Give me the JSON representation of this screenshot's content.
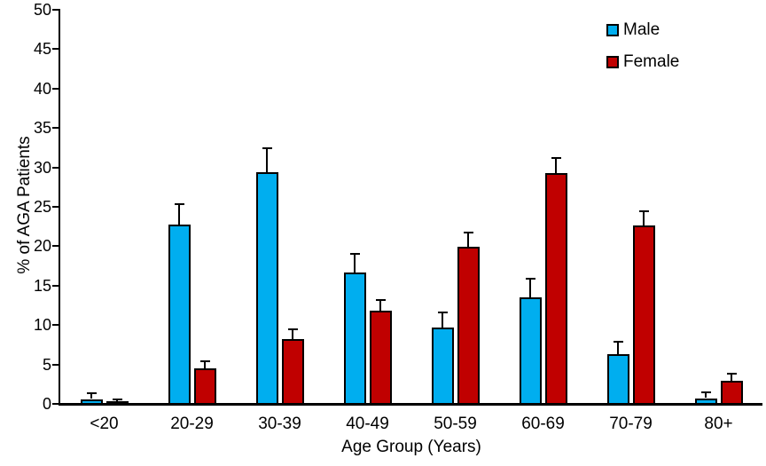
{
  "chart_data": {
    "type": "bar",
    "title": "",
    "xlabel": "Age Group (Years)",
    "ylabel": "% of AGA Patients",
    "categories": [
      "<20",
      "20-29",
      "30-39",
      "40-49",
      "50-59",
      "60-69",
      "70-79",
      "80+"
    ],
    "series": [
      {
        "name": "Male",
        "color": "#00AEEF",
        "values": [
          0.6,
          22.7,
          29.4,
          16.7,
          9.7,
          13.5,
          6.3,
          0.7
        ],
        "errors_upper": [
          0.6,
          2.5,
          2.9,
          2.2,
          1.8,
          2.3,
          1.5,
          0.6
        ]
      },
      {
        "name": "Female",
        "color": "#C00000",
        "values": [
          0.3,
          4.5,
          8.2,
          11.8,
          19.9,
          29.3,
          22.6,
          2.9
        ],
        "errors_upper": [
          0.2,
          0.8,
          1.1,
          1.3,
          1.7,
          1.8,
          1.7,
          0.8
        ]
      }
    ],
    "ylim": [
      0,
      50
    ],
    "ytick_step": 5,
    "ytick_labels": [
      "0",
      "5",
      "10",
      "15",
      "20",
      "25",
      "30",
      "35",
      "40",
      "45",
      "50"
    ],
    "grid": false,
    "legend_position": "top-right",
    "error_bars": "upper",
    "bar_border_color": "#000000",
    "axis_color": "#000000"
  }
}
